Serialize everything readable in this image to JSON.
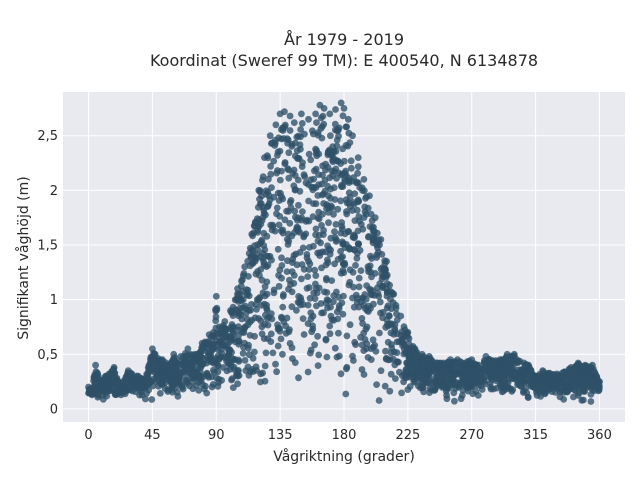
{
  "chart_data": {
    "type": "scatter",
    "title_lines": [
      "År 1979 - 2019",
      "Koordinat (Sweref 99 TM): E 400540, N 6134878"
    ],
    "xlabel": "Vågriktning (grader)",
    "ylabel": "Signifikant våghöjd (m)",
    "xlim": [
      -18,
      378
    ],
    "ylim": [
      -0.12,
      2.9
    ],
    "xticks": [
      0,
      45,
      90,
      135,
      180,
      225,
      270,
      315,
      360
    ],
    "xtick_labels": [
      "0",
      "45",
      "90",
      "135",
      "180",
      "225",
      "270",
      "315",
      "360"
    ],
    "yticks": [
      0,
      0.5,
      1,
      1.5,
      2,
      2.5
    ],
    "ytick_labels": [
      "0",
      "0,5",
      "1",
      "1,5",
      "2",
      "2,5"
    ],
    "grid": true,
    "marker_color": "#2e5168",
    "plot_bg": "#e9e9f0",
    "series": [
      {
        "x": [
          0,
          2,
          5,
          8,
          12,
          18,
          22,
          28,
          35,
          40,
          45,
          47,
          52,
          58,
          60,
          65,
          70,
          75,
          80,
          85,
          88,
          90,
          92,
          96,
          100,
          105,
          110,
          115,
          120,
          124,
          128,
          132,
          135,
          138,
          142,
          145,
          150,
          155,
          160,
          163,
          166,
          170,
          174,
          178,
          180,
          183,
          186,
          190,
          194,
          198,
          202,
          206,
          210,
          215,
          220,
          225,
          230,
          235,
          240,
          250,
          255,
          260,
          270,
          275,
          280,
          290,
          295,
          300,
          310,
          315,
          320,
          330,
          340,
          345,
          350,
          355,
          358,
          360
        ],
        "y": [
          0.2,
          0.15,
          0.4,
          0.25,
          0.3,
          0.38,
          0.2,
          0.35,
          0.3,
          0.28,
          0.55,
          0.5,
          0.45,
          0.42,
          0.5,
          0.48,
          0.55,
          0.5,
          0.6,
          0.68,
          0.7,
          1.03,
          0.75,
          0.8,
          0.9,
          1.1,
          1.3,
          1.6,
          2.0,
          2.3,
          2.5,
          2.6,
          2.7,
          2.72,
          2.68,
          2.62,
          2.7,
          2.65,
          2.7,
          2.78,
          2.75,
          2.7,
          2.74,
          2.8,
          2.75,
          2.65,
          2.5,
          2.3,
          2.1,
          1.95,
          1.75,
          1.55,
          1.35,
          1.05,
          0.85,
          0.7,
          0.55,
          0.5,
          0.48,
          0.42,
          0.45,
          0.45,
          0.45,
          0.4,
          0.48,
          0.45,
          0.5,
          0.5,
          0.4,
          0.3,
          0.35,
          0.32,
          0.38,
          0.42,
          0.4,
          0.4,
          0.3,
          0.25
        ]
      }
    ]
  }
}
